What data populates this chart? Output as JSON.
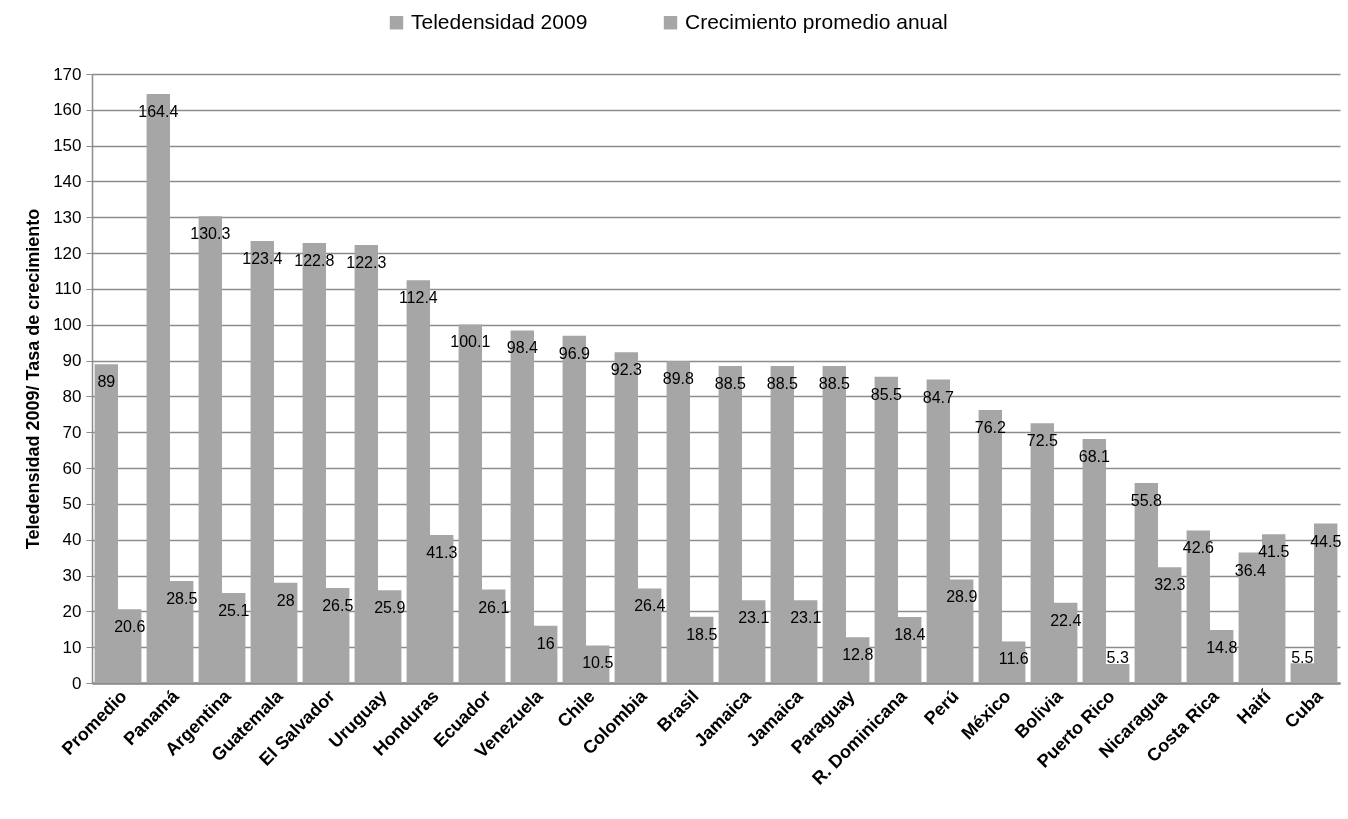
{
  "chart_data": {
    "type": "bar",
    "categories": [
      "Promedio",
      "Panamá",
      "Argentina",
      "Guatemala",
      "El Salvador",
      "Uruguay",
      "Honduras",
      "Ecuador",
      "Venezuela",
      "Chile",
      "Colombia",
      "Brasil",
      "Jamaica",
      "Jamaica",
      "Paraguay",
      "R. Dominicana",
      "Perú",
      "México",
      "Bolivia",
      "Puerto Rico",
      "Nicaragua",
      "Costa Rica",
      "Haití",
      "Cuba"
    ],
    "series": [
      {
        "name": "Teledensidad 2009",
        "color": "#a6a6a6",
        "values": [
          89,
          164.4,
          130.3,
          123.4,
          122.8,
          122.3,
          112.4,
          100.1,
          98.4,
          96.9,
          92.3,
          89.8,
          88.5,
          88.5,
          88.5,
          85.5,
          84.7,
          76.2,
          72.5,
          68.1,
          55.8,
          42.6,
          36.4,
          5.5
        ]
      },
      {
        "name": "Crecimiento promedio anual",
        "color": "#a6a6a6",
        "values": [
          20.6,
          28.5,
          25.1,
          28,
          26.5,
          25.9,
          41.3,
          26.1,
          16,
          10.5,
          26.4,
          18.5,
          23.1,
          23.1,
          12.8,
          18.4,
          28.9,
          11.6,
          22.4,
          5.3,
          32.3,
          14.8,
          41.5,
          44.5
        ]
      }
    ],
    "ylabel": "Teledensidad 2009/ Tasa de crecimiento",
    "ylim": [
      0,
      170
    ],
    "yticks": [
      0,
      10,
      20,
      30,
      40,
      50,
      60,
      70,
      80,
      90,
      100,
      110,
      120,
      130,
      140,
      150,
      160,
      170
    ],
    "grid": "y",
    "legend": "top",
    "data_labels": true
  }
}
